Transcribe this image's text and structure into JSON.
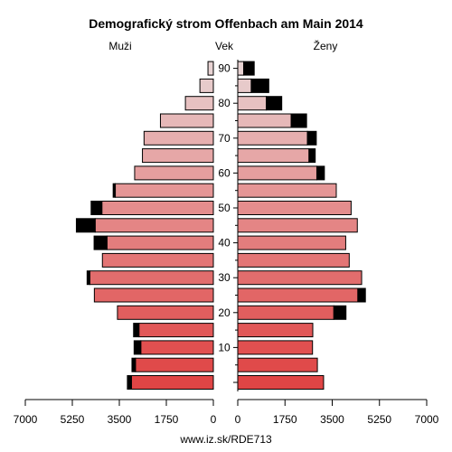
{
  "chart_data": {
    "type": "bar",
    "title": "Demografický strom Offenbach am Main 2014",
    "left_label": "Muži",
    "center_label": "Vek",
    "right_label": "Ženy",
    "footer": "www.iz.sk/RDE713",
    "x_ticks_left": [
      "7000",
      "5250",
      "3500",
      "1750",
      "0"
    ],
    "x_ticks_right": [
      "0",
      "1750",
      "3500",
      "5250",
      "7000"
    ],
    "xlim": [
      0,
      7000
    ],
    "age_ticks": [
      "10",
      "20",
      "30",
      "40",
      "50",
      "60",
      "70",
      "80",
      "90"
    ],
    "age_groups": [
      "0-4",
      "5-9",
      "10-14",
      "15-19",
      "20-24",
      "25-29",
      "30-34",
      "35-39",
      "40-44",
      "45-49",
      "50-54",
      "55-59",
      "60-64",
      "65-69",
      "70-74",
      "75-79",
      "80-84",
      "85-89",
      "90+"
    ],
    "series": [
      {
        "name": "Muži",
        "values": [
          3050,
          2900,
          2700,
          2770,
          3570,
          4430,
          4600,
          4130,
          3960,
          4400,
          4150,
          3650,
          2930,
          2640,
          2580,
          1970,
          1040,
          500,
          200
        ],
        "excess": [
          150,
          130,
          250,
          200,
          0,
          0,
          100,
          0,
          480,
          700,
          400,
          80,
          0,
          0,
          0,
          0,
          0,
          0,
          0
        ]
      },
      {
        "name": "Ženy",
        "values": [
          3180,
          2950,
          2770,
          2780,
          3560,
          4450,
          4590,
          4130,
          4000,
          4430,
          4200,
          3650,
          2930,
          2640,
          2580,
          1980,
          1060,
          500,
          220
        ],
        "excess": [
          0,
          0,
          0,
          0,
          450,
          280,
          0,
          0,
          0,
          0,
          0,
          0,
          280,
          230,
          330,
          570,
          570,
          650,
          390
        ]
      }
    ],
    "colors": {
      "young": "#e04545",
      "old": "#e8d3d3"
    }
  }
}
